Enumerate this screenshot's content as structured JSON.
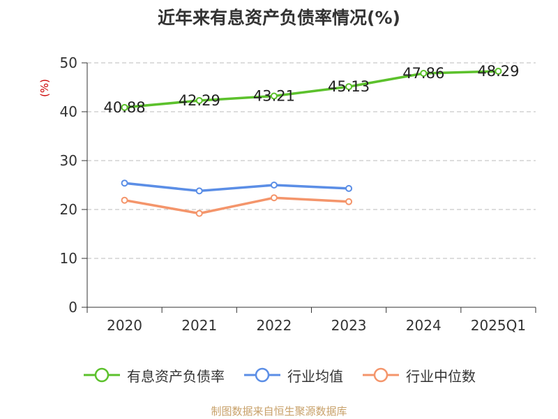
{
  "chart_data": {
    "type": "line",
    "title": "近年来有息资产负债率情况(%)",
    "ylabel": "(%)",
    "xlabel": "",
    "ylim": [
      0,
      50
    ],
    "yticks": [
      0,
      10,
      20,
      30,
      40,
      50
    ],
    "categories": [
      "2020",
      "2021",
      "2022",
      "2023",
      "2024",
      "2025Q1"
    ],
    "grid": "horizontal dashed",
    "legend_position": "bottom",
    "series": [
      {
        "name": "有息资产负债率",
        "color": "#5cc12c",
        "values": [
          40.88,
          42.29,
          43.21,
          45.13,
          47.86,
          48.29
        ],
        "labels": [
          "40.88",
          "42.29",
          "43.21",
          "45.13",
          "47.86",
          "48.29"
        ]
      },
      {
        "name": "行业均值",
        "color": "#5b8ee6",
        "values": [
          25.4,
          23.8,
          25.0,
          24.3,
          null,
          null
        ]
      },
      {
        "name": "行业中位数",
        "color": "#f4956b",
        "values": [
          21.9,
          19.2,
          22.4,
          21.6,
          null,
          null
        ]
      }
    ]
  },
  "source_note": "制图数据来自恒生聚源数据库"
}
